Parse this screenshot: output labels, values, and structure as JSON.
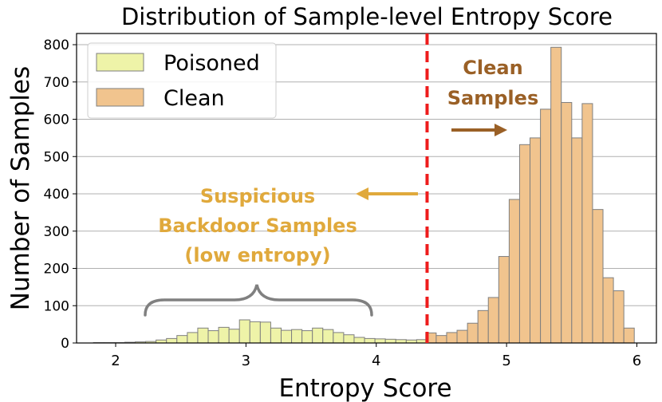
{
  "chart_data": {
    "type": "bar",
    "title": "Distribution of Sample-level Entropy Score",
    "xlabel": "Entropy Score",
    "ylabel": "Number of Samples",
    "xlim": [
      1.7,
      6.15
    ],
    "ylim": [
      0,
      830
    ],
    "xticks": [
      2,
      3,
      4,
      5,
      6
    ],
    "yticks": [
      0,
      100,
      200,
      300,
      400,
      500,
      600,
      700,
      800
    ],
    "grid": "horizontal",
    "legend_position": "top-left",
    "threshold": 4.39,
    "colors": {
      "poisoned": "#eef3a8",
      "clean": "#f1c48e",
      "edge": "#7f7f7f",
      "threshold": "#ee1c1c",
      "clean_annotation": "#9a6026",
      "suspicious_annotation": "#e0a93c",
      "brace": "#808080"
    },
    "bin_width": 0.08,
    "series": [
      {
        "name": "Poisoned",
        "bin_start": 1.83,
        "values": [
          1,
          1,
          1,
          2,
          3,
          4,
          8,
          12,
          20,
          28,
          40,
          33,
          42,
          37,
          62,
          57,
          56,
          40,
          34,
          36,
          33,
          40,
          36,
          28,
          22,
          15,
          12,
          11,
          10,
          9,
          8,
          9,
          10,
          9,
          8,
          9,
          10
        ]
      },
      {
        "name": "Clean",
        "bin_start": 4.38,
        "values": [
          27,
          20,
          28,
          34,
          53,
          87,
          122,
          232,
          385,
          532,
          550,
          627,
          793,
          645,
          550,
          642,
          358,
          175,
          140,
          40
        ]
      }
    ]
  },
  "annotations": {
    "clean_line1": "Clean",
    "clean_line2": "Samples",
    "suspicious_line1": "Suspicious",
    "suspicious_line2": "Backdoor Samples",
    "suspicious_line3": "(low entropy)"
  }
}
